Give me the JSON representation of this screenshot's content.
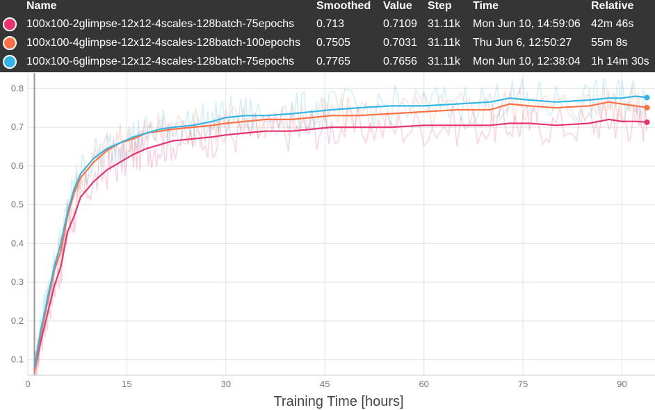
{
  "tooltip": {
    "headers": {
      "name": "Name",
      "smoothed": "Smoothed",
      "value": "Value",
      "step": "Step",
      "time": "Time",
      "relative": "Relative"
    },
    "rows": [
      {
        "name": "100x100-2glimpse-12x12-4scales-128batch-75epochs",
        "smoothed": "0.713",
        "value": "0.7109",
        "step": "31.11k",
        "time": "Mon Jun 10, 14:59:06",
        "relative": "42m 46s",
        "color": "#e8336e"
      },
      {
        "name": "100x100-4glimpse-12x12-4scales-128batch-100epochs",
        "smoothed": "0.7505",
        "value": "0.7031",
        "step": "31.11k",
        "time": "Thu Jun 6, 12:50:27",
        "relative": "55m 8s",
        "color": "#ff7043"
      },
      {
        "name": "100x100-6glimpse-12x12-4scales-128batch-75epochs",
        "smoothed": "0.7765",
        "value": "0.7656",
        "step": "31.11k",
        "time": "Mon Jun 10, 12:38:04",
        "relative": "1h 14m 30s",
        "color": "#33b5e5"
      }
    ]
  },
  "chart_data": {
    "type": "line",
    "title": "",
    "ylabel": "",
    "xlabel": "Training Time [hours]",
    "xlim": [
      0,
      95
    ],
    "ylim": [
      0.06,
      0.84
    ],
    "x_ticks": [
      0,
      15,
      30,
      45,
      60,
      75,
      90
    ],
    "y_ticks": [
      0.1,
      0.2,
      0.3,
      0.4,
      0.5,
      0.6,
      0.7,
      0.8
    ],
    "grid": true,
    "x": [
      1,
      2,
      3,
      4,
      5,
      6,
      7,
      8,
      10,
      12,
      14,
      16,
      18,
      20,
      22,
      25,
      28,
      30,
      33,
      36,
      40,
      43,
      46,
      50,
      55,
      60,
      65,
      70,
      73,
      76,
      80,
      85,
      88,
      90,
      92,
      94
    ],
    "series": [
      {
        "name": "100x100-2glimpse-12x12-4scales-128batch-75epochs",
        "color": "#e8336e",
        "values": [
          0.07,
          0.15,
          0.22,
          0.29,
          0.34,
          0.43,
          0.47,
          0.52,
          0.56,
          0.59,
          0.61,
          0.63,
          0.645,
          0.655,
          0.665,
          0.67,
          0.675,
          0.68,
          0.685,
          0.69,
          0.69,
          0.695,
          0.7,
          0.7,
          0.7,
          0.705,
          0.705,
          0.705,
          0.71,
          0.71,
          0.705,
          0.71,
          0.72,
          0.715,
          0.715,
          0.713
        ]
      },
      {
        "name": "100x100-4glimpse-12x12-4scales-128batch-100epochs",
        "color": "#ff7043",
        "values": [
          0.07,
          0.17,
          0.25,
          0.33,
          0.38,
          0.47,
          0.53,
          0.57,
          0.61,
          0.64,
          0.66,
          0.67,
          0.685,
          0.69,
          0.695,
          0.7,
          0.705,
          0.71,
          0.715,
          0.72,
          0.72,
          0.725,
          0.73,
          0.73,
          0.735,
          0.74,
          0.745,
          0.745,
          0.76,
          0.755,
          0.75,
          0.755,
          0.765,
          0.76,
          0.755,
          0.7505
        ]
      },
      {
        "name": "100x100-6glimpse-12x12-4scales-128batch-75epochs",
        "color": "#33b5e5",
        "values": [
          0.08,
          0.18,
          0.26,
          0.34,
          0.4,
          0.48,
          0.54,
          0.58,
          0.62,
          0.645,
          0.66,
          0.675,
          0.685,
          0.695,
          0.7,
          0.705,
          0.715,
          0.725,
          0.73,
          0.73,
          0.735,
          0.74,
          0.745,
          0.75,
          0.755,
          0.755,
          0.76,
          0.765,
          0.775,
          0.77,
          0.765,
          0.77,
          0.775,
          0.775,
          0.78,
          0.7765
        ]
      }
    ]
  }
}
